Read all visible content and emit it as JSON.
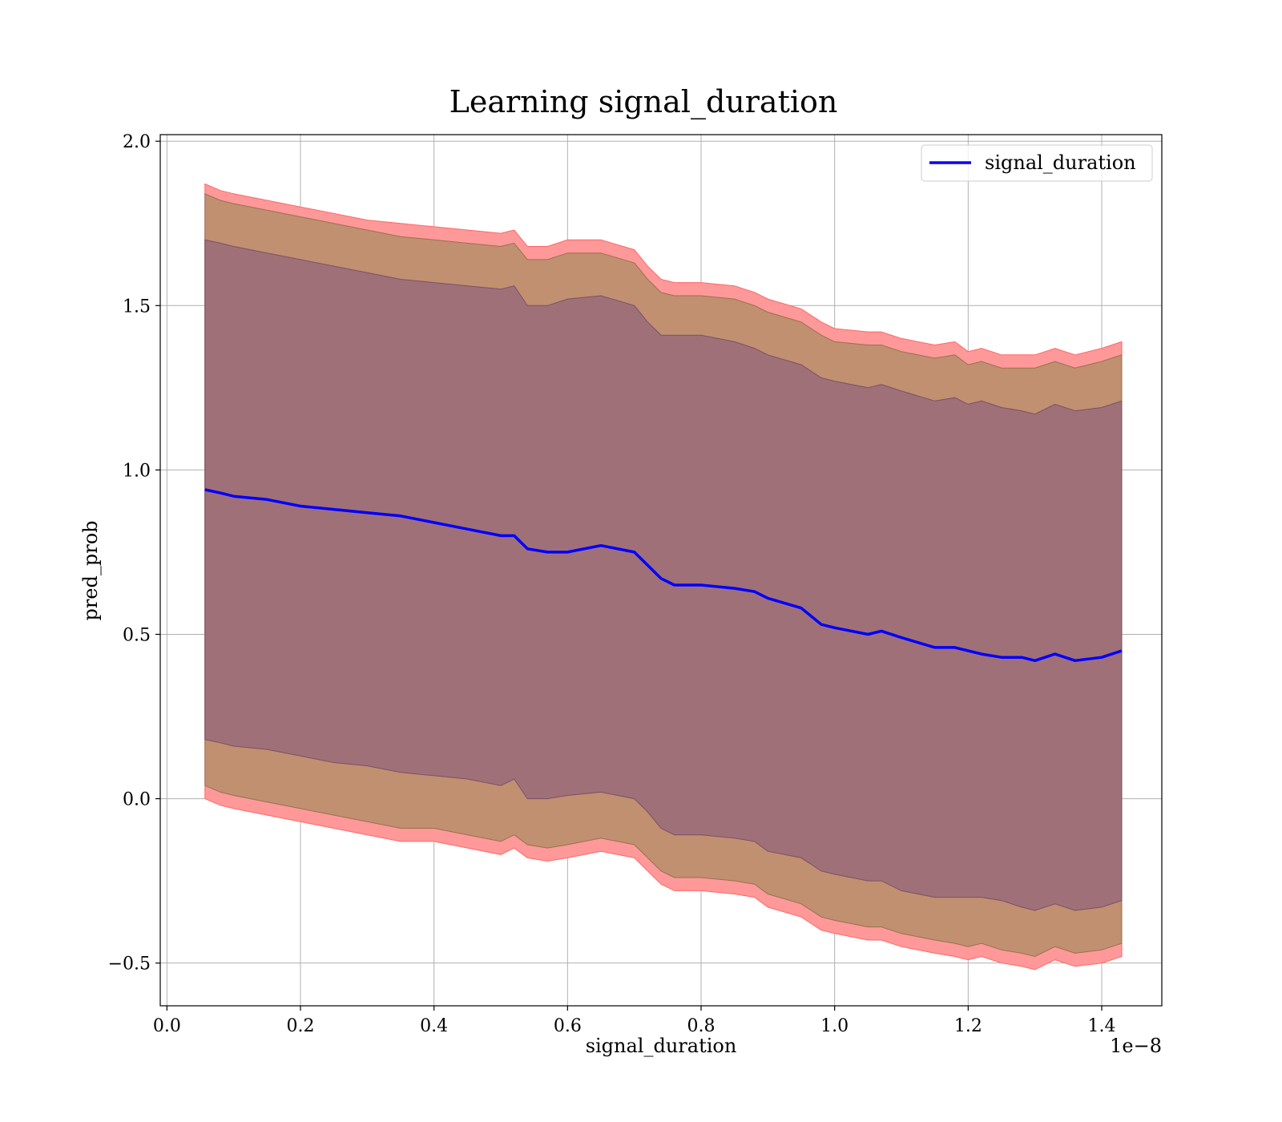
{
  "chart_data": {
    "type": "line",
    "title": "Learning signal_duration",
    "xlabel": "signal_duration",
    "ylabel": "pred_prob",
    "x_offset_label": "1e−8",
    "xlim": [
      -0.01,
      1.49
    ],
    "ylim": [
      -0.63,
      2.02
    ],
    "xticks": [
      0.0,
      0.2,
      0.4,
      0.6,
      0.8,
      1.0,
      1.2,
      1.4
    ],
    "xtick_labels": [
      "0.0",
      "0.2",
      "0.4",
      "0.6",
      "0.8",
      "1.0",
      "1.2",
      "1.4"
    ],
    "yticks": [
      -0.5,
      0.0,
      0.5,
      1.0,
      1.5,
      2.0
    ],
    "ytick_labels": [
      "−0.5",
      "0.0",
      "0.5",
      "1.0",
      "1.5",
      "2.0"
    ],
    "grid": true,
    "legend_position": "top-right",
    "colors": {
      "line": "#0000ff",
      "band_outer": "#ff9999",
      "band_middle": "#c09070",
      "band_inner": "#a07078",
      "grid": "#b0b0b0"
    },
    "x": [
      0.057,
      0.08,
      0.1,
      0.15,
      0.2,
      0.25,
      0.3,
      0.35,
      0.4,
      0.45,
      0.5,
      0.52,
      0.54,
      0.57,
      0.6,
      0.65,
      0.7,
      0.72,
      0.74,
      0.76,
      0.8,
      0.85,
      0.88,
      0.9,
      0.95,
      0.98,
      1.0,
      1.05,
      1.07,
      1.1,
      1.15,
      1.18,
      1.2,
      1.22,
      1.25,
      1.28,
      1.3,
      1.33,
      1.36,
      1.4,
      1.43
    ],
    "series": [
      {
        "name": "signal_duration",
        "values": [
          0.94,
          0.93,
          0.92,
          0.91,
          0.89,
          0.88,
          0.87,
          0.86,
          0.84,
          0.82,
          0.8,
          0.8,
          0.76,
          0.75,
          0.75,
          0.77,
          0.75,
          0.71,
          0.67,
          0.65,
          0.65,
          0.64,
          0.63,
          0.61,
          0.58,
          0.53,
          0.52,
          0.5,
          0.51,
          0.49,
          0.46,
          0.46,
          0.45,
          0.44,
          0.43,
          0.43,
          0.42,
          0.44,
          0.42,
          0.43,
          0.45
        ]
      }
    ],
    "bands": [
      {
        "role": "outer",
        "upper": [
          1.87,
          1.85,
          1.84,
          1.82,
          1.8,
          1.78,
          1.76,
          1.75,
          1.74,
          1.73,
          1.72,
          1.73,
          1.68,
          1.68,
          1.7,
          1.7,
          1.67,
          1.62,
          1.58,
          1.57,
          1.57,
          1.56,
          1.54,
          1.52,
          1.49,
          1.45,
          1.43,
          1.42,
          1.42,
          1.4,
          1.38,
          1.39,
          1.36,
          1.37,
          1.35,
          1.35,
          1.35,
          1.37,
          1.35,
          1.37,
          1.39
        ],
        "lower": [
          0.0,
          -0.02,
          -0.03,
          -0.05,
          -0.07,
          -0.09,
          -0.11,
          -0.13,
          -0.13,
          -0.15,
          -0.17,
          -0.15,
          -0.18,
          -0.19,
          -0.18,
          -0.16,
          -0.18,
          -0.22,
          -0.26,
          -0.28,
          -0.28,
          -0.29,
          -0.3,
          -0.33,
          -0.36,
          -0.4,
          -0.41,
          -0.43,
          -0.43,
          -0.45,
          -0.47,
          -0.48,
          -0.49,
          -0.48,
          -0.5,
          -0.51,
          -0.52,
          -0.49,
          -0.51,
          -0.5,
          -0.48
        ]
      },
      {
        "role": "middle",
        "upper": [
          1.84,
          1.82,
          1.81,
          1.79,
          1.77,
          1.75,
          1.73,
          1.71,
          1.7,
          1.69,
          1.68,
          1.69,
          1.64,
          1.64,
          1.66,
          1.66,
          1.63,
          1.58,
          1.54,
          1.53,
          1.53,
          1.52,
          1.5,
          1.48,
          1.45,
          1.41,
          1.39,
          1.38,
          1.38,
          1.36,
          1.34,
          1.35,
          1.32,
          1.33,
          1.31,
          1.31,
          1.31,
          1.33,
          1.31,
          1.33,
          1.35
        ],
        "lower": [
          0.04,
          0.02,
          0.01,
          -0.01,
          -0.03,
          -0.05,
          -0.07,
          -0.09,
          -0.09,
          -0.11,
          -0.13,
          -0.11,
          -0.14,
          -0.15,
          -0.14,
          -0.12,
          -0.14,
          -0.18,
          -0.22,
          -0.24,
          -0.24,
          -0.25,
          -0.26,
          -0.29,
          -0.32,
          -0.36,
          -0.37,
          -0.39,
          -0.39,
          -0.41,
          -0.43,
          -0.44,
          -0.45,
          -0.44,
          -0.46,
          -0.47,
          -0.48,
          -0.45,
          -0.47,
          -0.46,
          -0.44
        ]
      },
      {
        "role": "inner",
        "upper": [
          1.7,
          1.69,
          1.68,
          1.66,
          1.64,
          1.62,
          1.6,
          1.58,
          1.57,
          1.56,
          1.55,
          1.56,
          1.5,
          1.5,
          1.52,
          1.53,
          1.5,
          1.45,
          1.41,
          1.41,
          1.41,
          1.39,
          1.37,
          1.35,
          1.32,
          1.28,
          1.27,
          1.25,
          1.26,
          1.24,
          1.21,
          1.22,
          1.2,
          1.21,
          1.19,
          1.18,
          1.17,
          1.2,
          1.18,
          1.19,
          1.21
        ],
        "lower": [
          0.18,
          0.17,
          0.16,
          0.15,
          0.13,
          0.11,
          0.1,
          0.08,
          0.07,
          0.06,
          0.04,
          0.06,
          0.0,
          0.0,
          0.01,
          0.02,
          0.0,
          -0.04,
          -0.09,
          -0.11,
          -0.11,
          -0.12,
          -0.13,
          -0.16,
          -0.18,
          -0.22,
          -0.23,
          -0.25,
          -0.25,
          -0.28,
          -0.3,
          -0.3,
          -0.3,
          -0.3,
          -0.31,
          -0.33,
          -0.34,
          -0.32,
          -0.34,
          -0.33,
          -0.31
        ]
      }
    ]
  }
}
